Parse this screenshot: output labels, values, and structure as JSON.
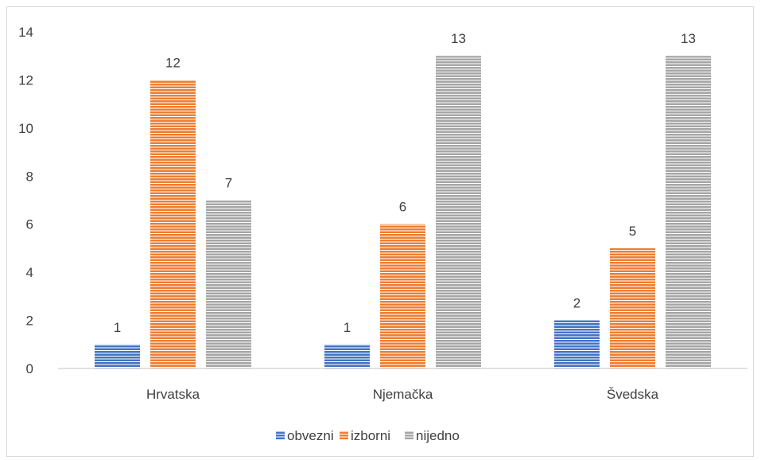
{
  "chart_data": {
    "type": "bar",
    "categories": [
      "Hrvatska",
      "Njemačka",
      "Švedska"
    ],
    "series": [
      {
        "name": "obvezni",
        "values": [
          1,
          1,
          2
        ],
        "color": "#4472c4"
      },
      {
        "name": "izborni",
        "values": [
          12,
          6,
          5
        ],
        "color": "#ed7d31"
      },
      {
        "name": "nijedno",
        "values": [
          7,
          13,
          13
        ],
        "color": "#a5a5a5"
      }
    ],
    "ylim": [
      0,
      14
    ],
    "yticks": [
      0,
      2,
      4,
      6,
      8,
      10,
      12,
      14
    ],
    "grid": false,
    "legend": "bottom",
    "data_labels": true,
    "pattern": "horizontal-stripes"
  }
}
